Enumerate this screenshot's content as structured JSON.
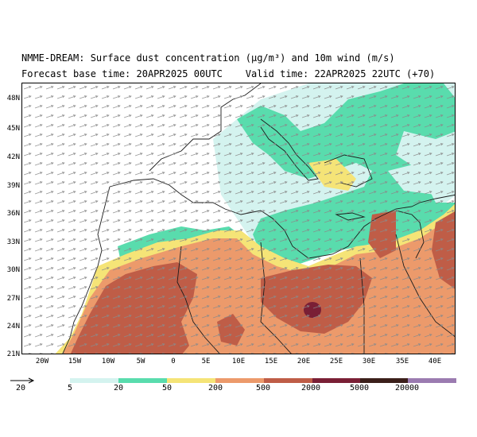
{
  "header": {
    "title_line1": "NMME-DREAM: Surface dust concentration (μg/m³) and 10m wind (m/s)",
    "title_line2": "Forecast base time: 20APR2025 00UTC    Valid time: 22APR2025 22UTC (+70)"
  },
  "axes": {
    "lat_labels": [
      "48N",
      "45N",
      "42N",
      "39N",
      "36N",
      "33N",
      "30N",
      "27N",
      "24N",
      "21N"
    ],
    "lon_labels": [
      "20W",
      "15W",
      "10W",
      "5W",
      "0",
      "5E",
      "10E",
      "15E",
      "20E",
      "25E",
      "30E",
      "35E",
      "40E"
    ]
  },
  "colorbar": {
    "labels": [
      "5",
      "20",
      "50",
      "200",
      "500",
      "2000",
      "5000",
      "20000"
    ],
    "colors": [
      "#d4f3ef",
      "#59dcad",
      "#f5e477",
      "#ec9a6b",
      "#bf5d47",
      "#7a1f35",
      "#3b1f1a",
      "#9b7bb0"
    ]
  },
  "wind_key": {
    "label": "20"
  },
  "map_colors": {
    "sea": "#ffffff",
    "land": "#ffffff",
    "dust_5": "#d4f3ef",
    "dust_20": "#59dcad",
    "dust_50": "#f5e477",
    "dust_200": "#ec9a6b",
    "dust_500": "#bf5d47",
    "dust_2000": "#7a1f35"
  }
}
